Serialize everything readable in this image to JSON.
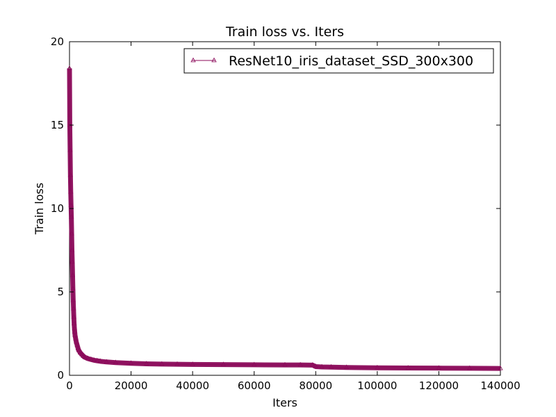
{
  "chart_data": {
    "type": "line",
    "title": "Train loss  vs. Iters",
    "xlabel": "Iters",
    "ylabel": "Train loss",
    "xlim": [
      0,
      140000
    ],
    "ylim": [
      0,
      20
    ],
    "x_ticks": [
      0,
      20000,
      40000,
      60000,
      80000,
      100000,
      120000,
      140000
    ],
    "y_ticks": [
      0,
      5,
      10,
      15,
      20
    ],
    "grid": false,
    "legend_position": "top-right",
    "series": [
      {
        "name": "ResNet10_iris_dataset_SSD_300x300",
        "color": "#8b0a5a",
        "marker": "tri-up",
        "x": [
          0,
          100,
          200,
          300,
          400,
          500,
          600,
          700,
          800,
          900,
          1000,
          1100,
          1200,
          1300,
          1400,
          1500,
          1600,
          1700,
          1800,
          2000,
          2200,
          2500,
          2800,
          3000,
          3500,
          4000,
          4500,
          5000,
          6000,
          7000,
          8000,
          9000,
          10000,
          12000,
          15000,
          20000,
          25000,
          30000,
          35000,
          40000,
          50000,
          60000,
          70000,
          75000,
          79000,
          80000,
          82000,
          85000,
          90000,
          100000,
          110000,
          120000,
          130000,
          140000
        ],
        "y": [
          18.4,
          15.0,
          13.5,
          12.0,
          11.0,
          10.2,
          9.5,
          8.5,
          7.5,
          6.8,
          6.0,
          5.2,
          4.5,
          4.0,
          3.5,
          3.1,
          2.8,
          2.6,
          2.4,
          2.2,
          2.0,
          1.8,
          1.6,
          1.5,
          1.35,
          1.25,
          1.15,
          1.08,
          1.0,
          0.95,
          0.9,
          0.87,
          0.84,
          0.8,
          0.76,
          0.72,
          0.69,
          0.67,
          0.66,
          0.65,
          0.64,
          0.63,
          0.62,
          0.62,
          0.61,
          0.52,
          0.5,
          0.49,
          0.47,
          0.45,
          0.44,
          0.43,
          0.42,
          0.41
        ]
      }
    ]
  }
}
